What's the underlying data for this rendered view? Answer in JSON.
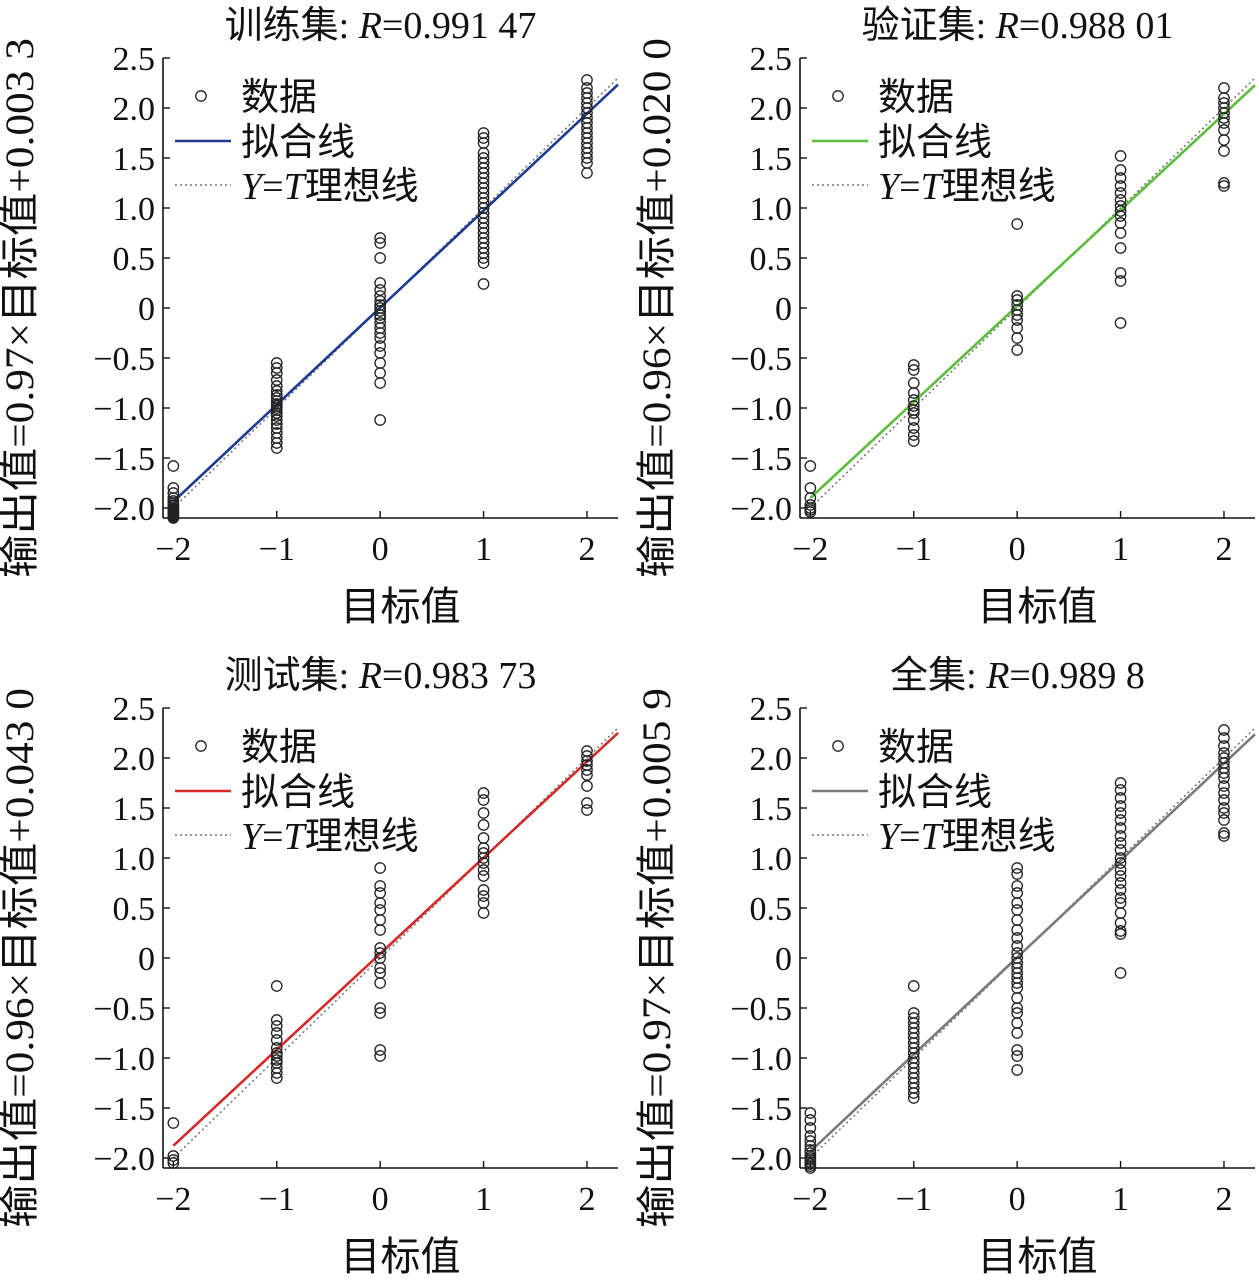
{
  "figure": {
    "colors": {
      "axis": "#111111",
      "marker": "#222222",
      "ideal_line": "#777777"
    }
  },
  "chart_data": [
    {
      "type": "scatter",
      "title": {
        "prefix": "训练集: ",
        "italic": "R",
        "suffix": "=0.991 47"
      },
      "xlabel": "目标值",
      "ylabel": "输出值=0.97×目标值+0.003 3",
      "xlim": [
        -2.1,
        2.3
      ],
      "ylim": [
        -2.1,
        2.5
      ],
      "xticks": [
        -2,
        -1,
        0,
        1,
        2
      ],
      "xtick_labels": [
        "−2",
        "−1",
        "0",
        "1",
        "2"
      ],
      "yticks": [
        -2,
        -1.5,
        -1,
        -0.5,
        0,
        0.5,
        1,
        1.5,
        2,
        2.5
      ],
      "ytick_labels": [
        "−2.0",
        "−1.5",
        "−1.0",
        "−0.5",
        "0",
        "0.5",
        "1.0",
        "1.5",
        "2.0",
        "2.5"
      ],
      "fit": {
        "slope": 0.97,
        "intercept": 0.0033,
        "color": "#1f3a93",
        "name": "拟合线"
      },
      "ideal": {
        "name_italic_1": "Y",
        "name_eq": "=",
        "name_italic_2": "T",
        "name_suffix": "理想线"
      },
      "data_name": "数据",
      "points": [
        {
          "x": -2,
          "y": [
            -1.58,
            -1.8,
            -1.85,
            -1.9,
            -1.93,
            -1.95,
            -1.97,
            -1.98,
            -2.0,
            -2.01,
            -2.02,
            -2.03,
            -2.04,
            -2.05,
            -2.06,
            -2.07,
            -2.08,
            -2.09,
            -2.1
          ]
        },
        {
          "x": -1,
          "y": [
            -0.55,
            -0.6,
            -0.65,
            -0.72,
            -0.78,
            -0.83,
            -0.87,
            -0.9,
            -0.93,
            -0.96,
            -0.98,
            -1.0,
            -1.02,
            -1.05,
            -1.08,
            -1.12,
            -1.16,
            -1.2,
            -1.25,
            -1.3,
            -1.35,
            -1.4
          ]
        },
        {
          "x": 0,
          "y": [
            0.7,
            0.65,
            0.5,
            0.25,
            0.18,
            0.12,
            0.07,
            0.03,
            0.0,
            -0.03,
            -0.07,
            -0.1,
            -0.15,
            -0.2,
            -0.25,
            -0.3,
            -0.38,
            -0.45,
            -0.55,
            -0.65,
            -0.75,
            -1.12
          ]
        },
        {
          "x": 1,
          "y": [
            1.75,
            1.7,
            1.65,
            1.55,
            1.5,
            1.45,
            1.4,
            1.35,
            1.3,
            1.25,
            1.2,
            1.15,
            1.1,
            1.05,
            1.0,
            0.95,
            0.9,
            0.85,
            0.8,
            0.75,
            0.7,
            0.65,
            0.6,
            0.55,
            0.5,
            0.45,
            0.24
          ]
        },
        {
          "x": 2,
          "y": [
            2.28,
            2.2,
            2.15,
            2.1,
            2.05,
            2.0,
            1.95,
            1.9,
            1.85,
            1.8,
            1.75,
            1.7,
            1.65,
            1.6,
            1.55,
            1.5,
            1.45,
            1.35
          ]
        }
      ]
    },
    {
      "type": "scatter",
      "title": {
        "prefix": "验证集: ",
        "italic": "R",
        "suffix": "=0.988 01"
      },
      "xlabel": "目标值",
      "ylabel": "输出值=0.96×目标值+0.020 0",
      "xlim": [
        -2.1,
        2.3
      ],
      "ylim": [
        -2.1,
        2.5
      ],
      "xticks": [
        -2,
        -1,
        0,
        1,
        2
      ],
      "xtick_labels": [
        "−2",
        "−1",
        "0",
        "1",
        "2"
      ],
      "yticks": [
        -2,
        -1.5,
        -1,
        -0.5,
        0,
        0.5,
        1,
        1.5,
        2,
        2.5
      ],
      "ytick_labels": [
        "−2.0",
        "−1.5",
        "−1.0",
        "−0.5",
        "0",
        "0.5",
        "1.0",
        "1.5",
        "2.0",
        "2.5"
      ],
      "fit": {
        "slope": 0.96,
        "intercept": 0.02,
        "color": "#5bbd3c",
        "name": "拟合线"
      },
      "ideal": {
        "name_italic_1": "Y",
        "name_eq": "=",
        "name_italic_2": "T",
        "name_suffix": "理想线"
      },
      "data_name": "数据",
      "points": [
        {
          "x": -2,
          "y": [
            -1.58,
            -1.8,
            -1.9,
            -1.97,
            -2.0,
            -2.02,
            -2.04
          ]
        },
        {
          "x": -1,
          "y": [
            -0.57,
            -0.62,
            -0.75,
            -0.85,
            -0.92,
            -0.98,
            -1.02,
            -1.05,
            -1.12,
            -1.2,
            -1.27,
            -1.33
          ]
        },
        {
          "x": 0,
          "y": [
            0.84,
            0.12,
            0.08,
            0.03,
            -0.02,
            -0.07,
            -0.12,
            -0.2,
            -0.3,
            -0.42
          ]
        },
        {
          "x": 1,
          "y": [
            1.52,
            1.38,
            1.3,
            1.22,
            1.15,
            1.08,
            1.02,
            0.97,
            0.92,
            0.85,
            0.75,
            0.6,
            0.35,
            0.27,
            -0.15
          ]
        },
        {
          "x": 2,
          "y": [
            2.2,
            2.1,
            2.05,
            2.0,
            1.95,
            1.9,
            1.85,
            1.78,
            1.68,
            1.57,
            1.25,
            1.22
          ]
        }
      ]
    },
    {
      "type": "scatter",
      "title": {
        "prefix": "测试集: ",
        "italic": "R",
        "suffix": "=0.983 73"
      },
      "xlabel": "目标值",
      "ylabel": "输出值=0.96×目标值+0.043 0",
      "xlim": [
        -2.1,
        2.3
      ],
      "ylim": [
        -2.1,
        2.5
      ],
      "xticks": [
        -2,
        -1,
        0,
        1,
        2
      ],
      "xtick_labels": [
        "−2",
        "−1",
        "0",
        "1",
        "2"
      ],
      "yticks": [
        -2,
        -1.5,
        -1,
        -0.5,
        0,
        0.5,
        1,
        1.5,
        2,
        2.5
      ],
      "ytick_labels": [
        "−2.0",
        "−1.5",
        "−1.0",
        "−0.5",
        "0",
        "0.5",
        "1.0",
        "1.5",
        "2.0",
        "2.5"
      ],
      "fit": {
        "slope": 0.96,
        "intercept": 0.043,
        "color": "#d42a2a",
        "name": "拟合线"
      },
      "ideal": {
        "name_italic_1": "Y",
        "name_eq": "=",
        "name_italic_2": "T",
        "name_suffix": "理想线"
      },
      "data_name": "数据",
      "points": [
        {
          "x": -2,
          "y": [
            -1.65,
            -1.98,
            -2.02,
            -2.05
          ]
        },
        {
          "x": -1,
          "y": [
            -0.28,
            -0.62,
            -0.68,
            -0.75,
            -0.82,
            -0.9,
            -0.95,
            -0.98,
            -1.02,
            -1.05,
            -1.1,
            -1.15,
            -1.2
          ]
        },
        {
          "x": 0,
          "y": [
            0.9,
            0.72,
            0.65,
            0.55,
            0.48,
            0.38,
            0.28,
            0.1,
            0.05,
            0.0,
            -0.1,
            -0.15,
            -0.25,
            -0.5,
            -0.55,
            -0.92,
            -0.98
          ]
        },
        {
          "x": 1,
          "y": [
            1.65,
            1.58,
            1.45,
            1.33,
            1.2,
            1.1,
            1.05,
            1.0,
            0.95,
            0.88,
            0.82,
            0.68,
            0.62,
            0.55,
            0.45
          ]
        },
        {
          "x": 2,
          "y": [
            2.07,
            2.02,
            1.97,
            1.93,
            1.88,
            1.83,
            1.72,
            1.55,
            1.48
          ]
        }
      ]
    },
    {
      "type": "scatter",
      "title": {
        "prefix": "全集: ",
        "italic": "R",
        "suffix": "=0.989 8"
      },
      "xlabel": "目标值",
      "ylabel": "输出值=0.97×目标值+0.005 9",
      "xlim": [
        -2.1,
        2.3
      ],
      "ylim": [
        -2.1,
        2.5
      ],
      "xticks": [
        -2,
        -1,
        0,
        1,
        2
      ],
      "xtick_labels": [
        "−2",
        "−1",
        "0",
        "1",
        "2"
      ],
      "yticks": [
        -2,
        -1.5,
        -1,
        -0.5,
        0,
        0.5,
        1,
        1.5,
        2,
        2.5
      ],
      "ytick_labels": [
        "−2.0",
        "−1.5",
        "−1.0",
        "−0.5",
        "0",
        "0.5",
        "1.0",
        "1.5",
        "2.0",
        "2.5"
      ],
      "fit": {
        "slope": 0.97,
        "intercept": 0.0059,
        "color": "#7a7a7a",
        "name": "拟合线"
      },
      "ideal": {
        "name_italic_1": "Y",
        "name_eq": "=",
        "name_italic_2": "T",
        "name_suffix": "理想线"
      },
      "data_name": "数据",
      "points": [
        {
          "x": -2,
          "y": [
            -1.55,
            -1.62,
            -1.7,
            -1.78,
            -1.83,
            -1.88,
            -1.92,
            -1.95,
            -1.98,
            -2.0,
            -2.02,
            -2.04,
            -2.06,
            -2.08,
            -2.1
          ]
        },
        {
          "x": -1,
          "y": [
            -0.28,
            -0.55,
            -0.6,
            -0.65,
            -0.7,
            -0.75,
            -0.8,
            -0.85,
            -0.9,
            -0.95,
            -1.0,
            -1.05,
            -1.1,
            -1.15,
            -1.2,
            -1.25,
            -1.3,
            -1.35,
            -1.4
          ]
        },
        {
          "x": 0,
          "y": [
            0.9,
            0.84,
            0.72,
            0.65,
            0.55,
            0.48,
            0.38,
            0.28,
            0.2,
            0.12,
            0.05,
            0.0,
            -0.05,
            -0.1,
            -0.15,
            -0.2,
            -0.25,
            -0.3,
            -0.4,
            -0.5,
            -0.55,
            -0.65,
            -0.75,
            -0.92,
            -0.98,
            -1.12
          ]
        },
        {
          "x": 1,
          "y": [
            1.75,
            1.68,
            1.6,
            1.52,
            1.45,
            1.38,
            1.3,
            1.22,
            1.15,
            1.08,
            1.0,
            0.95,
            0.88,
            0.82,
            0.75,
            0.68,
            0.6,
            0.55,
            0.45,
            0.35,
            0.27,
            0.24,
            -0.15
          ]
        },
        {
          "x": 2,
          "y": [
            2.28,
            2.2,
            2.12,
            2.05,
            2.0,
            1.95,
            1.9,
            1.85,
            1.8,
            1.72,
            1.65,
            1.58,
            1.5,
            1.45,
            1.38,
            1.25,
            1.22
          ]
        }
      ]
    }
  ]
}
